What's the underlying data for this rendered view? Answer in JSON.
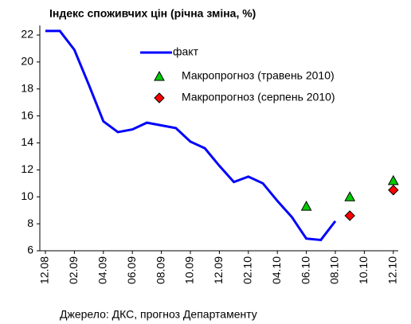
{
  "chart_data": {
    "type": "line",
    "title": "Індекс споживчих цін (річна зміна, %)",
    "source": "Джерело: ДКС, прогноз Департаменту",
    "categories": [
      "12.08",
      null,
      "02.09",
      null,
      "04.09",
      null,
      "06.09",
      null,
      "08.09",
      null,
      "10.09",
      null,
      "12.09",
      null,
      "02.10",
      null,
      "04.10",
      null,
      "06.10",
      null,
      "08.10",
      null,
      "10.10",
      null,
      "12.10"
    ],
    "ylim": [
      6,
      22
    ],
    "yticks": [
      6,
      8,
      10,
      12,
      14,
      16,
      18,
      20,
      22
    ],
    "grid": false,
    "series": [
      {
        "name": "факт",
        "color": "#0000ff",
        "marker": "line",
        "values": [
          22.3,
          22.3,
          20.9,
          18.3,
          15.6,
          14.8,
          15.0,
          15.5,
          15.3,
          15.1,
          14.1,
          13.6,
          12.3,
          11.1,
          11.5,
          11.0,
          9.7,
          8.5,
          6.9,
          6.8,
          8.2,
          null,
          null,
          null,
          null
        ]
      },
      {
        "name": "Макропрогноз (травень 2010)",
        "color": "#00cc00",
        "marker": "triangle",
        "values": [
          null,
          null,
          null,
          null,
          null,
          null,
          null,
          null,
          null,
          null,
          null,
          null,
          null,
          null,
          null,
          null,
          null,
          null,
          9.3,
          null,
          null,
          10.0,
          null,
          null,
          11.2
        ]
      },
      {
        "name": "Макропрогноз (серпень 2010)",
        "color": "#ff0000",
        "marker": "diamond",
        "values": [
          null,
          null,
          null,
          null,
          null,
          null,
          null,
          null,
          null,
          null,
          null,
          null,
          null,
          null,
          null,
          null,
          null,
          null,
          null,
          null,
          null,
          8.6,
          null,
          null,
          10.5
        ]
      }
    ]
  }
}
